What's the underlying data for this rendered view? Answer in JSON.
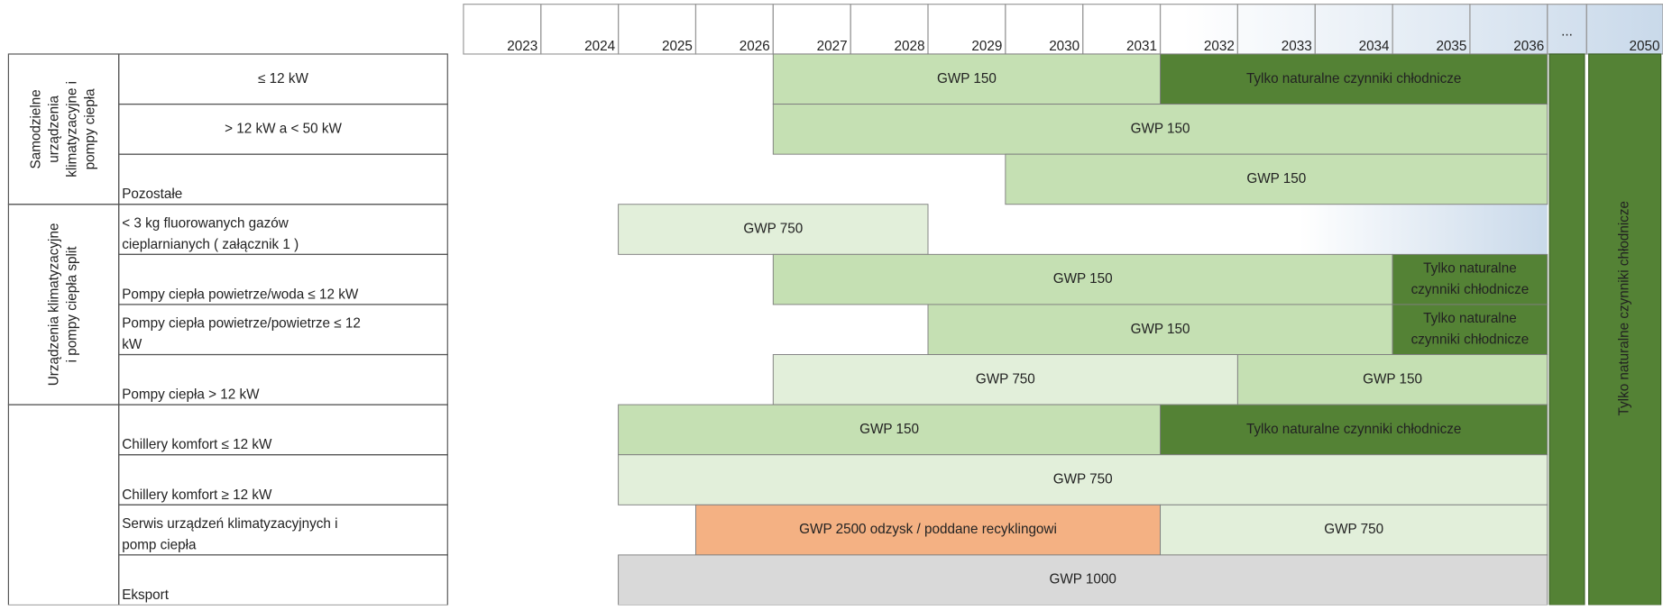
{
  "header": {
    "years": [
      2023,
      2024,
      2025,
      2026,
      2027,
      2028,
      2029,
      2030,
      2031,
      2032,
      2033,
      2034,
      2035,
      2036,
      "...",
      2050
    ]
  },
  "groups": [
    {
      "label": [
        "Samodzielne",
        "urządzenia",
        "klimatyzacyjne i",
        "pompy ciepła"
      ],
      "rows": [
        {
          "label": [
            "≤ 12 kW"
          ],
          "align": "center",
          "bars": [
            {
              "text": [
                "GWP 150"
              ],
              "start": 2027,
              "end": 2031,
              "color": "#c5e0b3"
            },
            {
              "text": [
                "Tylko naturalne czynniki chłodnicze"
              ],
              "start": 2032,
              "end": 2036,
              "color": "#548235",
              "text_color": "#ffffff"
            }
          ]
        },
        {
          "label": [
            "> 12 kW a < 50 kW"
          ],
          "align": "center",
          "bars": [
            {
              "text": [
                "GWP 150"
              ],
              "start": 2027,
              "end": 2036,
              "color": "#c5e0b3"
            }
          ]
        },
        {
          "label": [
            "Pozostałe"
          ],
          "bars": [
            {
              "text": [
                "GWP 150"
              ],
              "start": 2030,
              "end": 2036,
              "color": "#c5e0b3"
            }
          ]
        }
      ]
    },
    {
      "label": [
        "Urządzenia klimatyzacyjne",
        "i pompy ciepła split"
      ],
      "rows": [
        {
          "label": [
            "< 3 kg  fluorowanych gazów",
            "cieplarnianych ( załącznik 1 )"
          ],
          "bars": [
            {
              "text": [
                "GWP 750"
              ],
              "start": 2025,
              "end": 2028,
              "color": "#e2efda"
            }
          ]
        },
        {
          "label": [
            "Pompy ciepła powietrze/woda ≤ 12 kW"
          ],
          "bars": [
            {
              "text": [
                "GWP 150"
              ],
              "start": 2027,
              "end": 2034,
              "color": "#c5e0b3"
            },
            {
              "text": [
                "Tylko naturalne",
                "czynniki chłodnicze"
              ],
              "start": 2035,
              "end": 2036,
              "color": "#548235",
              "text_color": "#ffffff"
            }
          ]
        },
        {
          "label": [
            "Pompy ciepła powietrze/powietrze ≤ 12",
            "kW"
          ],
          "bars": [
            {
              "text": [
                "GWP 150"
              ],
              "start": 2029,
              "end": 2034,
              "color": "#c5e0b3"
            },
            {
              "text": [
                "Tylko naturalne",
                "czynniki chłodnicze"
              ],
              "start": 2035,
              "end": 2036,
              "color": "#548235",
              "text_color": "#ffffff"
            }
          ]
        },
        {
          "label": [
            "Pompy ciepła > 12 kW"
          ],
          "bars": [
            {
              "text": [
                "GWP 750"
              ],
              "start": 2027,
              "end": 2032,
              "color": "#e2efda"
            },
            {
              "text": [
                "GWP 150"
              ],
              "start": 2033,
              "end": 2036,
              "color": "#c5e0b3"
            }
          ]
        }
      ]
    },
    {
      "rows": [
        {
          "label": [
            "Chillery komfort ≤ 12 kW"
          ],
          "bars": [
            {
              "text": [
                "GWP 150"
              ],
              "start": 2025,
              "end": 2031,
              "color": "#c5e0b3"
            },
            {
              "text": [
                "Tylko naturalne czynniki chłodnicze"
              ],
              "start": 2032,
              "end": 2036,
              "color": "#548235",
              "text_color": "#ffffff"
            }
          ]
        },
        {
          "label": [
            "Chillery komfort ≥ 12 kW"
          ],
          "bars": [
            {
              "text": [
                "GWP 750"
              ],
              "start": 2025,
              "end": 2036,
              "color": "#e2efda"
            }
          ]
        },
        {
          "label": [
            "Serwis urządzeń klimatyzacyjnych i",
            "pomp ciepła"
          ],
          "bars": [
            {
              "text": [
                "GWP 2500 odzysk / poddane recyklingowi"
              ],
              "start": 2026,
              "end": 2031,
              "color": "#f4b183"
            },
            {
              "text": [
                "GWP 750"
              ],
              "start": 2032,
              "end": 2036,
              "color": "#e2efda"
            }
          ]
        },
        {
          "label": [
            "Eksport"
          ],
          "bars": [
            {
              "text": [
                "GWP 1000"
              ],
              "start": 2025,
              "end": 2036,
              "color": "#d9d9d9"
            }
          ]
        }
      ]
    }
  ],
  "final_columns": [
    {
      "column": "...",
      "color": "#548235"
    },
    {
      "column": 2050,
      "color": "#548235",
      "text": "Tylko naturalne czynniki chłodnicze",
      "text_color": "#ffffff"
    }
  ]
}
